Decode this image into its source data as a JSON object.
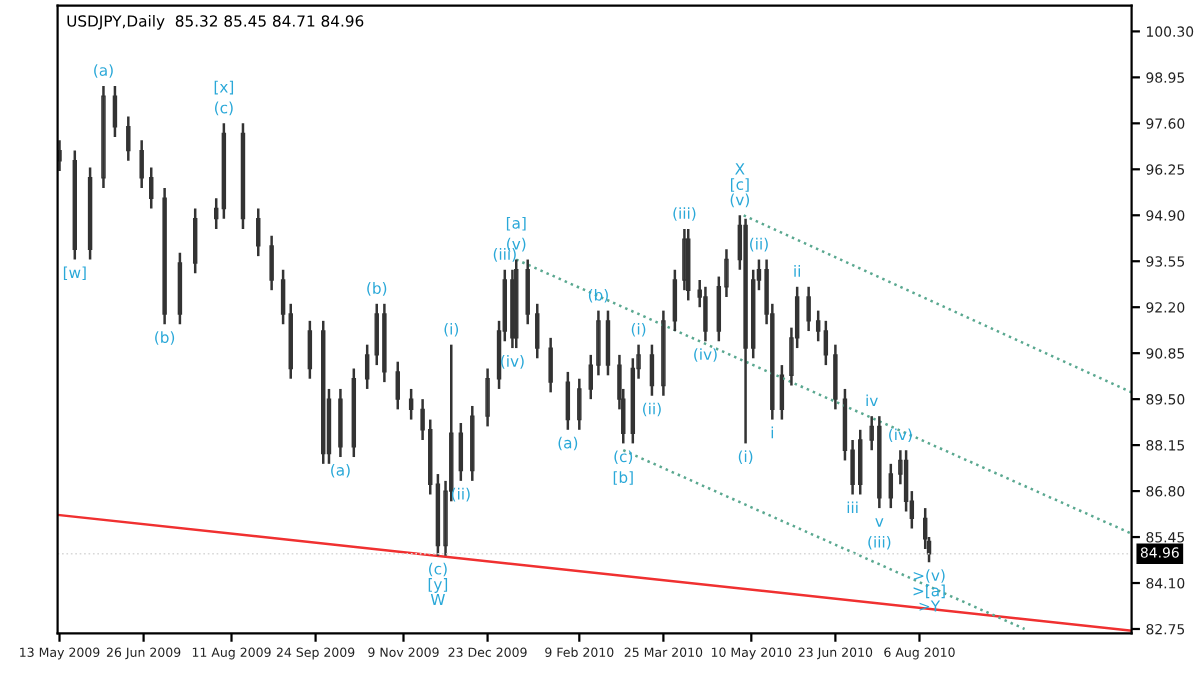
{
  "chart_data": {
    "type": "candlestick",
    "title": "USDJPY,Daily  85.32 85.45 84.71 84.96",
    "x": [
      "2009-05-13",
      "2009-05-21",
      "2009-05-29",
      "2009-06-05",
      "2009-06-11",
      "2009-06-18",
      "2009-06-25",
      "2009-06-30",
      "2009-07-07",
      "2009-07-15",
      "2009-07-23",
      "2009-08-03",
      "2009-08-07",
      "2009-08-17",
      "2009-08-25",
      "2009-09-01",
      "2009-09-07",
      "2009-09-11",
      "2009-09-21",
      "2009-09-28",
      "2009-10-01",
      "2009-10-07",
      "2009-10-14",
      "2009-10-21",
      "2009-10-26",
      "2009-10-30",
      "2009-11-06",
      "2009-11-13",
      "2009-11-19",
      "2009-11-23",
      "2009-11-27",
      "2009-12-01",
      "2009-12-04",
      "2009-12-09",
      "2009-12-15",
      "2009-12-23",
      "2009-12-29",
      "2010-01-01",
      "2010-01-05",
      "2010-01-07",
      "2010-01-13",
      "2010-01-18",
      "2010-01-25",
      "2010-02-03",
      "2010-02-09",
      "2010-02-15",
      "2010-02-19",
      "2010-02-24",
      "2010-03-02",
      "2010-03-04",
      "2010-03-09",
      "2010-03-12",
      "2010-03-19",
      "2010-03-25",
      "2010-03-31",
      "2010-04-05",
      "2010-04-07",
      "2010-04-13",
      "2010-04-16",
      "2010-04-23",
      "2010-04-27",
      "2010-05-04",
      "2010-05-07",
      "2010-05-11",
      "2010-05-14",
      "2010-05-18",
      "2010-05-21",
      "2010-05-26",
      "2010-05-31",
      "2010-06-03",
      "2010-06-09",
      "2010-06-14",
      "2010-06-18",
      "2010-06-23",
      "2010-06-28",
      "2010-07-02",
      "2010-07-06",
      "2010-07-12",
      "2010-07-16",
      "2010-07-22",
      "2010-07-27",
      "2010-07-30",
      "2010-08-02",
      "2010-08-09",
      "2010-08-11"
    ],
    "ohlc": [
      [
        96.8,
        97.1,
        96.2,
        96.5
      ],
      [
        96.5,
        96.8,
        93.6,
        93.9
      ],
      [
        93.9,
        96.3,
        93.6,
        96.0
      ],
      [
        96.0,
        98.7,
        95.7,
        98.4
      ],
      [
        98.4,
        98.7,
        97.2,
        97.5
      ],
      [
        97.5,
        97.8,
        96.5,
        96.8
      ],
      [
        96.8,
        97.1,
        95.7,
        96.0
      ],
      [
        96.0,
        96.3,
        95.1,
        95.4
      ],
      [
        95.4,
        95.7,
        91.7,
        92.0
      ],
      [
        92.0,
        93.8,
        91.7,
        93.5
      ],
      [
        93.5,
        95.1,
        93.2,
        94.8
      ],
      [
        94.8,
        95.4,
        94.5,
        95.1
      ],
      [
        95.1,
        97.6,
        94.8,
        97.3
      ],
      [
        97.3,
        97.6,
        94.5,
        94.8
      ],
      [
        94.8,
        95.1,
        93.7,
        94.0
      ],
      [
        94.0,
        94.3,
        92.7,
        93.0
      ],
      [
        93.0,
        93.3,
        91.7,
        92.0
      ],
      [
        92.0,
        92.3,
        90.1,
        90.4
      ],
      [
        90.4,
        91.8,
        90.1,
        91.5
      ],
      [
        91.5,
        91.8,
        87.6,
        87.9
      ],
      [
        87.9,
        89.8,
        87.6,
        89.5
      ],
      [
        89.5,
        89.8,
        87.8,
        88.1
      ],
      [
        88.1,
        90.4,
        87.8,
        90.1
      ],
      [
        90.1,
        91.1,
        89.8,
        90.8
      ],
      [
        90.8,
        92.3,
        90.5,
        92.0
      ],
      [
        92.0,
        92.3,
        90.0,
        90.3
      ],
      [
        90.3,
        90.6,
        89.2,
        89.5
      ],
      [
        89.5,
        89.8,
        88.9,
        89.2
      ],
      [
        89.2,
        89.5,
        88.3,
        88.6
      ],
      [
        88.6,
        88.9,
        86.7,
        87.0
      ],
      [
        87.0,
        87.3,
        84.9,
        85.2
      ],
      [
        85.2,
        87.1,
        84.9,
        86.8
      ],
      [
        86.8,
        91.1,
        86.5,
        88.5
      ],
      [
        88.5,
        88.8,
        87.1,
        87.4
      ],
      [
        87.4,
        89.3,
        87.1,
        89.0
      ],
      [
        89.0,
        90.4,
        88.7,
        90.1
      ],
      [
        90.1,
        91.8,
        89.8,
        91.5
      ],
      [
        91.5,
        93.3,
        91.2,
        93.0
      ],
      [
        93.0,
        93.3,
        91.0,
        91.3
      ],
      [
        91.3,
        93.6,
        91.0,
        93.3
      ],
      [
        93.3,
        93.6,
        91.7,
        92.0
      ],
      [
        92.0,
        92.3,
        90.7,
        91.0
      ],
      [
        91.0,
        91.3,
        89.7,
        90.0
      ],
      [
        90.0,
        90.3,
        88.6,
        88.9
      ],
      [
        88.9,
        90.1,
        88.6,
        89.8
      ],
      [
        89.8,
        90.8,
        89.5,
        90.5
      ],
      [
        90.5,
        92.1,
        90.2,
        91.8
      ],
      [
        91.8,
        92.1,
        90.2,
        90.5
      ],
      [
        90.5,
        90.8,
        89.2,
        89.5
      ],
      [
        89.5,
        89.8,
        88.2,
        88.5
      ],
      [
        88.5,
        90.7,
        88.2,
        90.4
      ],
      [
        90.4,
        91.1,
        90.1,
        90.8
      ],
      [
        90.8,
        91.1,
        89.6,
        89.9
      ],
      [
        89.9,
        92.1,
        89.6,
        91.8
      ],
      [
        91.8,
        93.3,
        91.5,
        93.0
      ],
      [
        93.0,
        94.5,
        92.7,
        94.2
      ],
      [
        94.2,
        94.5,
        92.4,
        92.7
      ],
      [
        92.7,
        93.0,
        92.2,
        92.5
      ],
      [
        92.5,
        92.8,
        91.2,
        91.5
      ],
      [
        91.5,
        93.1,
        91.2,
        92.8
      ],
      [
        92.8,
        93.9,
        92.5,
        93.6
      ],
      [
        93.6,
        94.9,
        93.3,
        94.6
      ],
      [
        94.6,
        94.8,
        88.2,
        91.0
      ],
      [
        91.0,
        93.3,
        90.7,
        93.0
      ],
      [
        93.0,
        93.6,
        92.7,
        93.3
      ],
      [
        93.3,
        93.6,
        91.7,
        92.0
      ],
      [
        92.0,
        92.3,
        88.9,
        89.2
      ],
      [
        89.2,
        90.5,
        88.9,
        90.2
      ],
      [
        90.2,
        91.6,
        89.9,
        91.3
      ],
      [
        91.3,
        92.8,
        91.0,
        92.5
      ],
      [
        92.5,
        92.8,
        91.5,
        91.8
      ],
      [
        91.8,
        92.1,
        91.2,
        91.5
      ],
      [
        91.5,
        91.8,
        90.5,
        90.8
      ],
      [
        90.8,
        91.1,
        89.2,
        89.5
      ],
      [
        89.5,
        89.8,
        87.7,
        88.0
      ],
      [
        88.0,
        88.3,
        86.7,
        87.0
      ],
      [
        87.0,
        88.6,
        86.7,
        88.3
      ],
      [
        88.3,
        89.0,
        88.0,
        88.7
      ],
      [
        88.7,
        89.0,
        86.3,
        86.6
      ],
      [
        86.6,
        87.6,
        86.3,
        87.3
      ],
      [
        87.3,
        88.0,
        87.0,
        87.7
      ],
      [
        87.7,
        88.0,
        86.2,
        86.5
      ],
      [
        86.5,
        86.8,
        85.7,
        86.0
      ],
      [
        86.0,
        86.3,
        85.1,
        85.4
      ],
      [
        85.32,
        85.45,
        84.71,
        84.96
      ]
    ],
    "series": [
      {
        "type": "line",
        "color": "#f03030",
        "line_style": "solid",
        "x": [
          "2009-05-12",
          "2010-11-25"
        ],
        "values": [
          86.1,
          82.7
        ]
      },
      {
        "type": "line",
        "color": "#5aa890",
        "line_style": "dotted",
        "x": [
          "2010-05-06",
          "2010-11-25"
        ],
        "values": [
          94.9,
          89.7
        ]
      },
      {
        "type": "line",
        "color": "#5aa890",
        "line_style": "dotted",
        "x": [
          "2010-01-07",
          "2010-11-25"
        ],
        "values": [
          93.6,
          85.55
        ]
      },
      {
        "type": "line",
        "color": "#5aa890",
        "line_style": "dotted",
        "x": [
          "2010-03-04",
          "2010-09-30"
        ],
        "values": [
          88.0,
          82.75
        ]
      }
    ],
    "xlim": [
      "2009-05-12",
      "2010-11-25"
    ],
    "xticks": [
      {
        "value": "2009-05-13",
        "label": "13 May 2009"
      },
      {
        "value": "2009-06-26",
        "label": "26 Jun 2009"
      },
      {
        "value": "2009-08-11",
        "label": "11 Aug 2009"
      },
      {
        "value": "2009-09-24",
        "label": "24 Sep 2009"
      },
      {
        "value": "2009-11-09",
        "label": "9 Nov 2009"
      },
      {
        "value": "2009-12-23",
        "label": "23 Dec 2009"
      },
      {
        "value": "2010-02-09",
        "label": "9 Feb 2010"
      },
      {
        "value": "2010-03-25",
        "label": "25 Mar 2010"
      },
      {
        "value": "2010-05-10",
        "label": "10 May 2010"
      },
      {
        "value": "2010-06-23",
        "label": "23 Jun 2010"
      },
      {
        "value": "2010-08-06",
        "label": "6 Aug 2010"
      }
    ],
    "ylim": [
      82.62,
      101.06
    ],
    "yticks": [
      {
        "value": 100.3,
        "label": "100.30"
      },
      {
        "value": 98.95,
        "label": "98.95"
      },
      {
        "value": 97.6,
        "label": "97.60"
      },
      {
        "value": 96.25,
        "label": "96.25"
      },
      {
        "value": 94.9,
        "label": "94.90"
      },
      {
        "value": 93.55,
        "label": "93.55"
      },
      {
        "value": 92.2,
        "label": "92.20"
      },
      {
        "value": 90.85,
        "label": "90.85"
      },
      {
        "value": 89.5,
        "label": "89.50"
      },
      {
        "value": 88.15,
        "label": "88.15"
      },
      {
        "value": 86.8,
        "label": "86.80"
      },
      {
        "value": 85.45,
        "label": "85.45"
      },
      {
        "value": 84.1,
        "label": "84.10"
      },
      {
        "value": 82.75,
        "label": "82.75"
      }
    ],
    "ref_lines": [
      {
        "axis": "y",
        "value": 84.96,
        "label": "84.96",
        "color": "#d8d8d8",
        "line_style": "dotted"
      }
    ],
    "annotations": [
      {
        "text": "(a)",
        "x": "2009-06-05",
        "y": 98.7
      },
      {
        "text": "[w]",
        "x": "2009-05-21",
        "y": 93.6
      },
      {
        "text": "(b)",
        "x": "2009-07-07",
        "y": 91.7
      },
      {
        "text": "(c)",
        "x": "2009-08-07",
        "y": 97.6
      },
      {
        "text": "[x]",
        "x": "2009-08-07",
        "y": 97.6
      },
      {
        "text": "(a)",
        "x": "2009-10-07",
        "y": 87.8
      },
      {
        "text": "(b)",
        "x": "2009-10-26",
        "y": 92.3
      },
      {
        "text": "(c)\n[y]\nW",
        "x": "2009-11-27",
        "y": 84.9
      },
      {
        "text": "(i)",
        "x": "2009-12-04",
        "y": 91.1
      },
      {
        "text": "(ii)",
        "x": "2009-12-09",
        "y": 87.1
      },
      {
        "text": "(iii)",
        "x": "2010-01-01",
        "y": 93.3
      },
      {
        "text": "(iv)",
        "x": "2010-01-05",
        "y": 91.0
      },
      {
        "text": "(v)",
        "x": "2010-01-07",
        "y": 93.6
      },
      {
        "text": "[a]",
        "x": "2010-01-07",
        "y": 93.6
      },
      {
        "text": "(b)",
        "x": "2010-02-19",
        "y": 92.1
      },
      {
        "text": "(a)",
        "x": "2010-02-03",
        "y": 88.6
      },
      {
        "text": "(i)",
        "x": "2010-03-12",
        "y": 91.1
      },
      {
        "text": "(ii)",
        "x": "2010-03-19",
        "y": 89.6
      },
      {
        "text": "(c)",
        "x": "2010-03-04",
        "y": 88.2
      },
      {
        "text": "[b]",
        "x": "2010-03-04",
        "y": 88.2
      },
      {
        "text": "(iii)",
        "x": "2010-04-05",
        "y": 94.5
      },
      {
        "text": "(iv)",
        "x": "2010-04-16",
        "y": 91.2
      },
      {
        "text": "X\n[c]\n(v)",
        "x": "2010-05-04",
        "y": 94.9
      },
      {
        "text": "(i)",
        "x": "2010-05-07",
        "y": 88.2
      },
      {
        "text": "(ii)",
        "x": "2010-05-14",
        "y": 93.6
      },
      {
        "text": "i",
        "x": "2010-05-21",
        "y": 88.9
      },
      {
        "text": "ii",
        "x": "2010-06-03",
        "y": 92.8
      },
      {
        "text": "iii",
        "x": "2010-07-02",
        "y": 86.7
      },
      {
        "text": "iv",
        "x": "2010-07-12",
        "y": 89.0
      },
      {
        "text": "v",
        "x": "2010-07-16",
        "y": 86.3
      },
      {
        "text": "(iii)",
        "x": "2010-07-16",
        "y": 86.3
      },
      {
        "text": "(iv)",
        "x": "2010-07-27",
        "y": 88.0
      },
      {
        "text": ">(v)\n>[a]\n>Y",
        "x": "2010-08-11",
        "y": 84.71
      }
    ],
    "grid": false,
    "legend": false
  }
}
